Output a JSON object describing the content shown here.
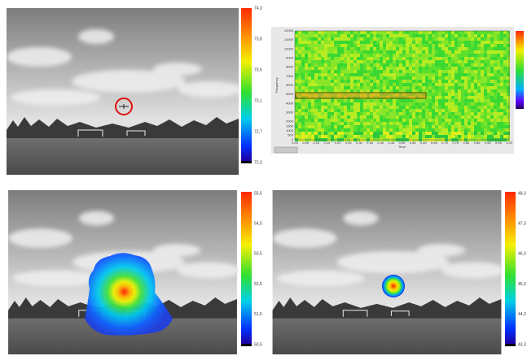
{
  "panels": [
    {
      "colorbar_labels": [
        "74,3",
        "73,8",
        "73,5",
        "73,1",
        "72,7",
        "72,3"
      ]
    },
    {
      "spectrogram": {
        "y_label": "Frequency",
        "x_label": "Time",
        "yticks": [
          0,
          500,
          1000,
          1500,
          2000,
          3000,
          4000,
          5000,
          6000,
          7000,
          8000,
          9000,
          10000,
          11000,
          12000
        ],
        "xticks": [
          "0,00",
          "0,05",
          "0,10",
          "0,15",
          "0,20",
          "0,25",
          "0,30",
          "0,35",
          "0,40",
          "0,45",
          "0,50",
          "0,55",
          "0,60",
          "0,65",
          "0,70",
          "0,75",
          "0,80",
          "0,85",
          "0,90",
          "0,95",
          "1,00"
        ]
      }
    },
    {
      "colorbar_labels": [
        "55,5",
        "54,5",
        "53,5",
        "52,5",
        "51,5",
        "50,5"
      ]
    },
    {
      "colorbar_labels": [
        "48,3",
        "47,3",
        "46,3",
        "45,3",
        "44,3",
        "43,3"
      ]
    }
  ]
}
